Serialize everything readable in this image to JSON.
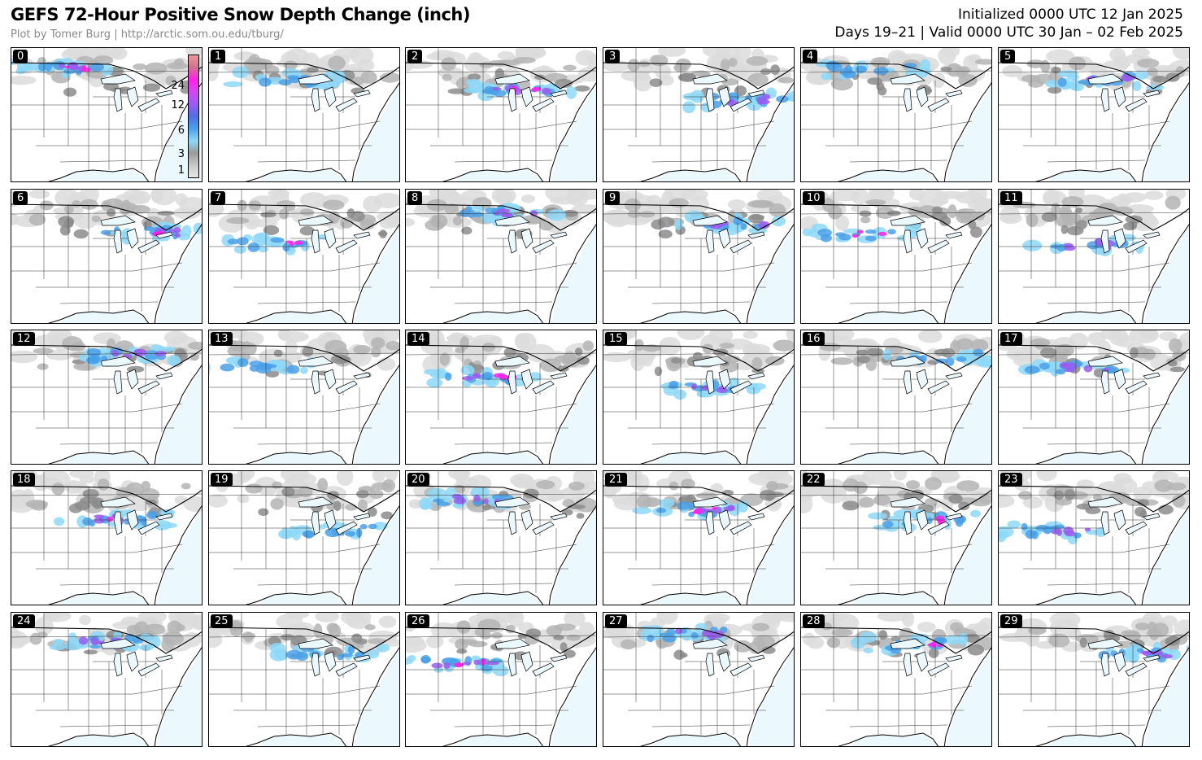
{
  "header": {
    "title": "GEFS 72-Hour Positive Snow Depth Change (inch)",
    "credit": "Plot by Tomer Burg | http://arctic.som.ou.edu/tburg/",
    "initialized": "Initialized 0000 UTC 12 Jan 2025",
    "valid": "Days 19–21 | Valid 0000 UTC 30 Jan – 02 Feb 2025"
  },
  "colorbar": {
    "ticks": [
      "1",
      "3",
      "6",
      "12",
      "24"
    ],
    "colors": [
      "#e8e8e8",
      "#c8c8c8",
      "#9a9a9a",
      "#8ed8f8",
      "#4aa0e8",
      "#5070e0",
      "#9a5cf0",
      "#d048f0",
      "#ff20e8",
      "#d07090",
      "#e89898"
    ]
  },
  "members": [
    "0",
    "1",
    "2",
    "3",
    "4",
    "5",
    "6",
    "7",
    "8",
    "9",
    "10",
    "11",
    "12",
    "13",
    "14",
    "15",
    "16",
    "17",
    "18",
    "19",
    "20",
    "21",
    "22",
    "23",
    "24",
    "25",
    "26",
    "27",
    "28",
    "29"
  ],
  "palette": {
    "ocean": "#ebf8fd",
    "land": "#ffffff",
    "light": "#dcdcdc",
    "mid": "#b4b4b4",
    "dark": "#8c8c8c",
    "cyan": "#8ed8f8",
    "blue": "#4aa0e8",
    "purple": "#9a5cf0",
    "magenta": "#ff20e8"
  }
}
